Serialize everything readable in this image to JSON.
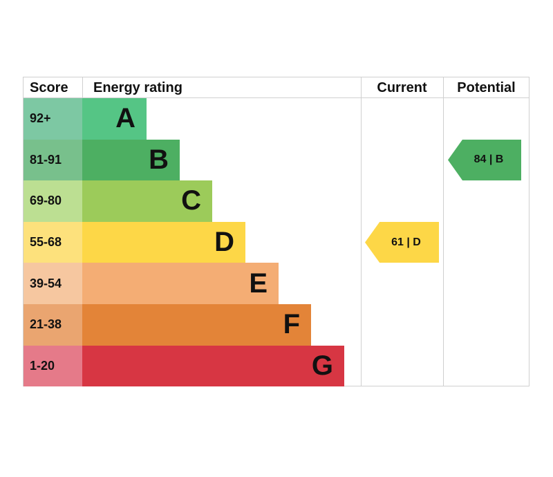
{
  "chart_data": {
    "type": "table",
    "title": "Energy rating",
    "headers": {
      "score": "Score",
      "rating": "Energy rating",
      "current": "Current",
      "potential": "Potential"
    },
    "bands": [
      {
        "score": "92+",
        "letter": "A",
        "color": "#55c585",
        "score_color": "#7dc8a3"
      },
      {
        "score": "81-91",
        "letter": "B",
        "color": "#4daf62",
        "score_color": "#78c08c"
      },
      {
        "score": "69-80",
        "letter": "C",
        "color": "#9ccb5a",
        "score_color": "#bcdf92"
      },
      {
        "score": "55-68",
        "letter": "D",
        "color": "#fdd747",
        "score_color": "#fde17c"
      },
      {
        "score": "39-54",
        "letter": "E",
        "color": "#f4ad74",
        "score_color": "#f6c7a0"
      },
      {
        "score": "21-38",
        "letter": "F",
        "color": "#e38438",
        "score_color": "#eaa570"
      },
      {
        "score": "1-20",
        "letter": "G",
        "color": "#d73643",
        "score_color": "#e57a89"
      }
    ],
    "current": {
      "value": 61,
      "band": "D",
      "label": "61 | D",
      "color": "#fdd747"
    },
    "potential": {
      "value": 84,
      "band": "B",
      "label": "84 | B",
      "color": "#4daf62"
    }
  }
}
